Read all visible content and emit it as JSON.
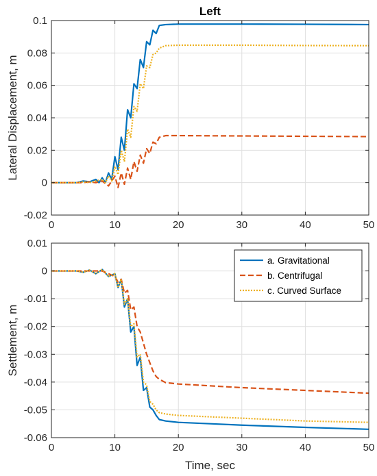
{
  "chart_data": [
    {
      "type": "line",
      "title": "Left",
      "xlabel": "",
      "ylabel": "Lateral Displacement, m",
      "xlim": [
        0,
        50
      ],
      "ylim": [
        -0.02,
        0.1
      ],
      "xticks": [
        0,
        10,
        20,
        30,
        40,
        50
      ],
      "yticks": [
        -0.02,
        0,
        0.02,
        0.04,
        0.06,
        0.08,
        0.1
      ],
      "xtick_labels": [
        "0",
        "10",
        "20",
        "30",
        "40",
        "50"
      ],
      "ytick_labels": [
        "-0.02",
        "0",
        "0.02",
        "0.04",
        "0.06",
        "0.08",
        "0.1"
      ],
      "grid": true,
      "legend": null,
      "series": [
        {
          "name": "a. Gravitational",
          "color": "#0072BD",
          "style": "solid",
          "points": [
            [
              0,
              0
            ],
            [
              4,
              0
            ],
            [
              5,
              0.001
            ],
            [
              6,
              0.0005
            ],
            [
              7,
              0.002
            ],
            [
              7.5,
              0
            ],
            [
              8,
              0.003
            ],
            [
              8.5,
              0
            ],
            [
              9,
              0.006
            ],
            [
              9.5,
              0.002
            ],
            [
              10,
              0.016
            ],
            [
              10.5,
              0.008
            ],
            [
              11,
              0.028
            ],
            [
              11.5,
              0.02
            ],
            [
              12,
              0.045
            ],
            [
              12.5,
              0.04
            ],
            [
              13,
              0.061
            ],
            [
              13.5,
              0.058
            ],
            [
              14,
              0.076
            ],
            [
              14.5,
              0.071
            ],
            [
              15,
              0.087
            ],
            [
              15.5,
              0.085
            ],
            [
              16,
              0.094
            ],
            [
              16.5,
              0.092
            ],
            [
              17,
              0.097
            ],
            [
              18,
              0.0975
            ],
            [
              20,
              0.0978
            ],
            [
              30,
              0.0978
            ],
            [
              40,
              0.0977
            ],
            [
              50,
              0.0975
            ]
          ]
        },
        {
          "name": "b. Centrifugal",
          "color": "#D95319",
          "style": "dashed",
          "points": [
            [
              0,
              0
            ],
            [
              5,
              0
            ],
            [
              6,
              0.0005
            ],
            [
              7,
              0
            ],
            [
              8,
              0.001
            ],
            [
              9,
              -0.002
            ],
            [
              10,
              0.004
            ],
            [
              10.5,
              -0.003
            ],
            [
              11,
              0.006
            ],
            [
              11.5,
              -0.001
            ],
            [
              12,
              0.009
            ],
            [
              12.5,
              0.002
            ],
            [
              13,
              0.013
            ],
            [
              13.5,
              0.007
            ],
            [
              14,
              0.017
            ],
            [
              14.5,
              0.012
            ],
            [
              15,
              0.021
            ],
            [
              15.5,
              0.018
            ],
            [
              16,
              0.025
            ],
            [
              16.5,
              0.024
            ],
            [
              17,
              0.028
            ],
            [
              18,
              0.029
            ],
            [
              20,
              0.029
            ],
            [
              30,
              0.0288
            ],
            [
              40,
              0.0286
            ],
            [
              50,
              0.0284
            ]
          ]
        },
        {
          "name": "c. Curved Surface",
          "color": "#EDB120",
          "style": "dotted",
          "points": [
            [
              0,
              0
            ],
            [
              4,
              0
            ],
            [
              5,
              0.0005
            ],
            [
              6,
              0
            ],
            [
              7,
              0.001
            ],
            [
              8,
              0.002
            ],
            [
              8.5,
              0
            ],
            [
              9,
              0.004
            ],
            [
              9.5,
              0.001
            ],
            [
              10,
              0.01
            ],
            [
              10.5,
              0.005
            ],
            [
              11,
              0.02
            ],
            [
              11.5,
              0.013
            ],
            [
              12,
              0.033
            ],
            [
              12.5,
              0.028
            ],
            [
              13,
              0.047
            ],
            [
              13.5,
              0.044
            ],
            [
              14,
              0.061
            ],
            [
              14.5,
              0.058
            ],
            [
              15,
              0.072
            ],
            [
              15.5,
              0.071
            ],
            [
              16,
              0.079
            ],
            [
              16.5,
              0.08
            ],
            [
              17,
              0.083
            ],
            [
              18,
              0.0845
            ],
            [
              20,
              0.0848
            ],
            [
              30,
              0.0848
            ],
            [
              40,
              0.0846
            ],
            [
              50,
              0.0845
            ]
          ]
        }
      ]
    },
    {
      "type": "line",
      "title": "",
      "xlabel": "Time, sec",
      "ylabel": "Settlement, m",
      "xlim": [
        0,
        50
      ],
      "ylim": [
        -0.06,
        0.01
      ],
      "xticks": [
        0,
        10,
        20,
        30,
        40,
        50
      ],
      "yticks": [
        -0.06,
        -0.05,
        -0.04,
        -0.03,
        -0.02,
        -0.01,
        0,
        0.01
      ],
      "xtick_labels": [
        "0",
        "10",
        "20",
        "30",
        "40",
        "50"
      ],
      "ytick_labels": [
        "-0.06",
        "-0.05",
        "-0.04",
        "-0.03",
        "-0.02",
        "-0.01",
        "0",
        "0.01"
      ],
      "grid": true,
      "legend": "top-right",
      "series": [
        {
          "name": "a. Gravitational",
          "color": "#0072BD",
          "style": "solid",
          "points": [
            [
              0,
              0
            ],
            [
              4,
              0
            ],
            [
              5,
              -0.0005
            ],
            [
              6,
              0.0003
            ],
            [
              7,
              -0.001
            ],
            [
              8,
              0.0005
            ],
            [
              9,
              -0.002
            ],
            [
              10,
              -0.001
            ],
            [
              10.5,
              -0.006
            ],
            [
              11,
              -0.003
            ],
            [
              11.5,
              -0.013
            ],
            [
              12,
              -0.01
            ],
            [
              12.5,
              -0.022
            ],
            [
              13,
              -0.02
            ],
            [
              13.5,
              -0.034
            ],
            [
              14,
              -0.031
            ],
            [
              14.5,
              -0.043
            ],
            [
              15,
              -0.042
            ],
            [
              15.5,
              -0.049
            ],
            [
              16,
              -0.05
            ],
            [
              16.5,
              -0.052
            ],
            [
              17,
              -0.0535
            ],
            [
              18,
              -0.054
            ],
            [
              20,
              -0.0545
            ],
            [
              25,
              -0.055
            ],
            [
              30,
              -0.0555
            ],
            [
              40,
              -0.0563
            ],
            [
              50,
              -0.057
            ]
          ]
        },
        {
          "name": "b. Centrifugal",
          "color": "#D95319",
          "style": "dashed",
          "points": [
            [
              0,
              0
            ],
            [
              4,
              0
            ],
            [
              6,
              0
            ],
            [
              8,
              0
            ],
            [
              9,
              -0.001
            ],
            [
              10,
              -0.002
            ],
            [
              10.5,
              -0.004
            ],
            [
              11,
              -0.003
            ],
            [
              11.5,
              -0.008
            ],
            [
              12,
              -0.007
            ],
            [
              12.5,
              -0.014
            ],
            [
              13,
              -0.013
            ],
            [
              13.5,
              -0.02
            ],
            [
              14,
              -0.022
            ],
            [
              14.5,
              -0.026
            ],
            [
              15,
              -0.03
            ],
            [
              15.5,
              -0.033
            ],
            [
              16,
              -0.036
            ],
            [
              16.5,
              -0.038
            ],
            [
              17,
              -0.039
            ],
            [
              18,
              -0.0402
            ],
            [
              20,
              -0.0407
            ],
            [
              30,
              -0.042
            ],
            [
              40,
              -0.043
            ],
            [
              50,
              -0.044
            ]
          ]
        },
        {
          "name": "c. Curved Surface",
          "color": "#EDB120",
          "style": "dotted",
          "points": [
            [
              0,
              0
            ],
            [
              4,
              0
            ],
            [
              5,
              -0.0005
            ],
            [
              6,
              0.0003
            ],
            [
              7,
              -0.001
            ],
            [
              8,
              0.0005
            ],
            [
              9,
              -0.002
            ],
            [
              10,
              -0.001
            ],
            [
              10.5,
              -0.006
            ],
            [
              11,
              -0.003
            ],
            [
              11.5,
              -0.012
            ],
            [
              12,
              -0.01
            ],
            [
              12.5,
              -0.02
            ],
            [
              13,
              -0.019
            ],
            [
              13.5,
              -0.031
            ],
            [
              14,
              -0.03
            ],
            [
              14.5,
              -0.04
            ],
            [
              15,
              -0.041
            ],
            [
              15.5,
              -0.047
            ],
            [
              16,
              -0.048
            ],
            [
              16.5,
              -0.05
            ],
            [
              17,
              -0.051
            ],
            [
              18,
              -0.0515
            ],
            [
              20,
              -0.052
            ],
            [
              30,
              -0.053
            ],
            [
              40,
              -0.054
            ],
            [
              50,
              -0.0545
            ]
          ]
        }
      ]
    }
  ]
}
